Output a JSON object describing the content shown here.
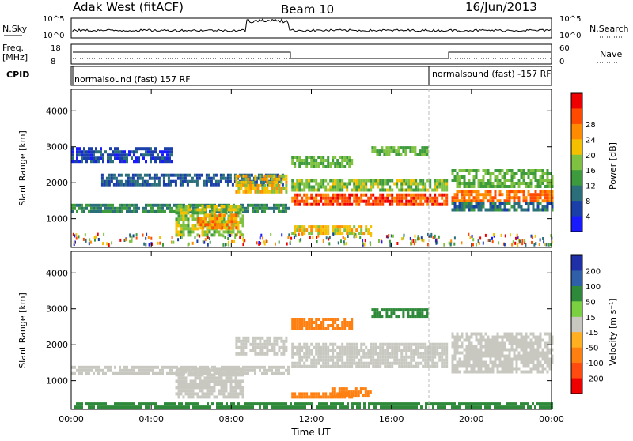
{
  "header": {
    "site": "Adak West (fitACF)",
    "beam": "Beam 10",
    "date": "16/Jun/2013"
  },
  "nsky": {
    "left_label": "N.Sky",
    "right_label": "N.Search",
    "ticks": [
      "10^5",
      "10^0"
    ],
    "right_ticks": [
      "10^5",
      "10^0"
    ]
  },
  "freq": {
    "left_label_1": "Freq.",
    "left_label_2": "[MHz]",
    "right_label": "Nave",
    "left_ticks": [
      "18",
      "8"
    ],
    "right_ticks": [
      "60",
      "0"
    ]
  },
  "cpid": {
    "label": "CPID",
    "seg1": "normalsound (fast) 157 RF",
    "seg2": "normalsound (fast) -157 RF"
  },
  "x_axis": {
    "ticks": [
      "00:00",
      "04:00",
      "08:00",
      "12:00",
      "16:00",
      "20:00",
      "00:00"
    ],
    "label": "Time UT"
  },
  "power_panel": {
    "ylabel": "Slant Range [km]",
    "yticks": [
      "1000",
      "2000",
      "3000",
      "4000"
    ],
    "cbar_label": "Power [dB]",
    "cbar_ticks": [
      "4",
      "8",
      "12",
      "16",
      "20",
      "24",
      "28"
    ]
  },
  "velocity_panel": {
    "ylabel": "Slant Range [km]",
    "yticks": [
      "1000",
      "2000",
      "3000",
      "4000"
    ],
    "cbar_label": "Velocity [m s⁻¹]",
    "cbar_ticks": [
      "200",
      "100",
      "50",
      "15",
      "-15",
      "-50",
      "-100",
      "-200"
    ]
  },
  "chart_data": {
    "type": "heatmap",
    "x": {
      "unit": "hours UT",
      "range": [
        0,
        24
      ]
    },
    "y": {
      "unit": "km",
      "range": [
        200,
        4600
      ]
    },
    "power_bins": [
      0,
      2,
      6,
      10,
      14,
      18,
      22,
      26,
      30
    ],
    "power_colors": [
      "#1a1aff",
      "#1a3fa8",
      "#2a6f7a",
      "#3d9a3d",
      "#7fc241",
      "#f4c000",
      "#ff8c00",
      "#ff4a00",
      "#ee0000"
    ],
    "velocity_colors": [
      "#1e2fa8",
      "#2e5fa8",
      "#2e8a3a",
      "#7ad040",
      "#c8c8c0",
      "#ffb020",
      "#ff8010",
      "#ff4a10",
      "#ee0000"
    ],
    "power_features": [
      {
        "h0": 0.0,
        "h1": 10.8,
        "r0": 1150,
        "r1": 1400,
        "p": 10
      },
      {
        "h0": 1.5,
        "h1": 10.6,
        "r0": 1900,
        "r1": 2250,
        "p": 6
      },
      {
        "h0": 0.0,
        "h1": 5.0,
        "r0": 2550,
        "r1": 2950,
        "p": 4
      },
      {
        "h0": 5.2,
        "h1": 8.6,
        "r0": 500,
        "r1": 1300,
        "p": 16
      },
      {
        "h0": 6.3,
        "h1": 8.3,
        "r0": 700,
        "r1": 1100,
        "p": 24
      },
      {
        "h0": 8.2,
        "h1": 10.7,
        "r0": 1700,
        "r1": 2200,
        "p": 20
      },
      {
        "h0": 11.0,
        "h1": 18.8,
        "r0": 1350,
        "r1": 1700,
        "p": 28
      },
      {
        "h0": 11.0,
        "h1": 18.8,
        "r0": 1750,
        "r1": 2050,
        "p": 16
      },
      {
        "h0": 11.0,
        "h1": 14.0,
        "r0": 2400,
        "r1": 2700,
        "p": 14
      },
      {
        "h0": 15.0,
        "h1": 17.8,
        "r0": 2750,
        "r1": 2950,
        "p": 14
      },
      {
        "h0": 11.0,
        "h1": 15.0,
        "r0": 550,
        "r1": 750,
        "p": 20
      },
      {
        "h0": 19.0,
        "h1": 24.0,
        "r0": 1450,
        "r1": 1800,
        "p": 26
      },
      {
        "h0": 19.0,
        "h1": 24.0,
        "r0": 1850,
        "r1": 2300,
        "p": 14
      },
      {
        "h0": 19.0,
        "h1": 24.0,
        "r0": 1200,
        "r1": 1400,
        "p": 8
      }
    ],
    "velocity_features": [
      {
        "h0": 0.0,
        "h1": 10.8,
        "r0": 1150,
        "r1": 1400,
        "v": 0
      },
      {
        "h0": 5.2,
        "h1": 8.6,
        "r0": 500,
        "r1": 1300,
        "v": 0
      },
      {
        "h0": 8.2,
        "h1": 10.7,
        "r0": 1700,
        "r1": 2200,
        "v": 0
      },
      {
        "h0": 11.0,
        "h1": 18.8,
        "r0": 1350,
        "r1": 2050,
        "v": 0
      },
      {
        "h0": 11.0,
        "h1": 14.0,
        "r0": 2400,
        "r1": 2700,
        "v": -40
      },
      {
        "h0": 15.0,
        "h1": 17.8,
        "r0": 2750,
        "r1": 2950,
        "v": 40
      },
      {
        "h0": 11.0,
        "h1": 14.0,
        "r0": 500,
        "r1": 650,
        "v": -60
      },
      {
        "h0": 13.0,
        "h1": 15.0,
        "r0": 550,
        "r1": 800,
        "v": -60
      },
      {
        "h0": 19.0,
        "h1": 24.0,
        "r0": 1200,
        "r1": 2300,
        "v": 0
      },
      {
        "h0": 0.0,
        "h1": 24.0,
        "r0": 220,
        "r1": 380,
        "v": 40
      }
    ]
  }
}
